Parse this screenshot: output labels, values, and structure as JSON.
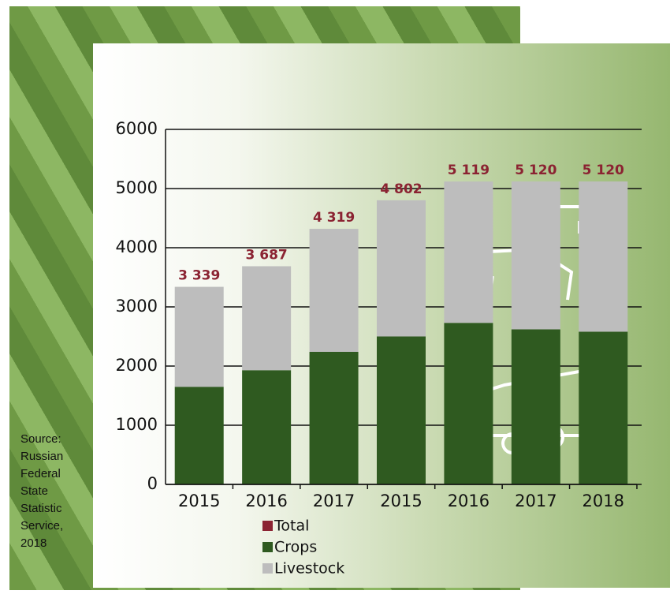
{
  "chart_data": {
    "type": "bar",
    "stacked": true,
    "categories": [
      "2015",
      "2016",
      "2017",
      "2015",
      "2016",
      "2017",
      "2018"
    ],
    "series": [
      {
        "name": "Total",
        "color": "#8b2332",
        "values": [
          3339,
          3687,
          4319,
          4802,
          5119,
          5120,
          5120
        ],
        "value_labels": [
          "3 339",
          "3 687",
          "4 319",
          "4 802",
          "5 119",
          "5 120",
          "5 120"
        ]
      },
      {
        "name": "Crops",
        "color": "#2f5a20",
        "values": [
          1650,
          1930,
          2240,
          2500,
          2730,
          2620,
          2580
        ]
      },
      {
        "name": "Livestock",
        "color": "#bdbdbd",
        "values": [
          1689,
          1757,
          2079,
          2302,
          2389,
          2500,
          2540
        ]
      }
    ],
    "ylim": [
      0,
      6000
    ],
    "yticks": [
      0,
      1000,
      2000,
      3000,
      4000,
      5000,
      6000
    ],
    "grid": true,
    "source": "Source: Russian Federal State Statistic Service, 2018"
  }
}
